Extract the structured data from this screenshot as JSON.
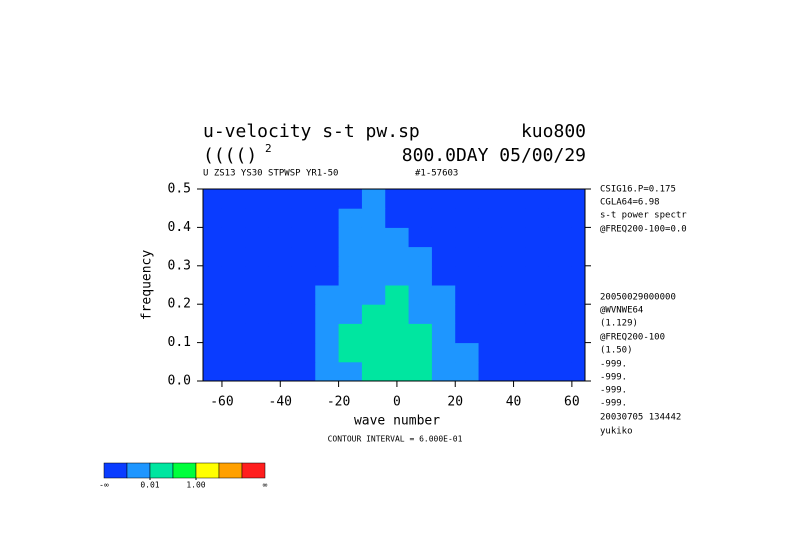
{
  "chart_data": {
    "type": "contourf",
    "title": "u-velocity s-t pw.sp",
    "title_right": "kuo800",
    "subtitle": "(((()",
    "subtitle_superscript": "2",
    "subtitle_right": "800.0DAY 05/00/29",
    "header_note": "U ZS13 YS30 STPWSP YR1-50",
    "header_note_right": "#1-57603",
    "x_label": "wave number",
    "y_label": "frequency",
    "footer_note": "CONTOUR INTERVAL = 6.000E-01",
    "side_notes": [
      "CSIG16.P=0.175",
      "CGLA64=6.98",
      "s-t power spectr",
      "@FREQ200-100=0.0",
      "20050029000000",
      "@WVNWE64",
      "(1.129)",
      "@FREQ200-100",
      "(1.50)",
      "-999.",
      "-999.",
      "-999.",
      "-999.",
      "20030705 134442",
      "yukiko"
    ],
    "xlim": [
      -66.5,
      64.5
    ],
    "ylim": [
      0,
      0.5
    ],
    "xticks": [
      -60,
      -40,
      -20,
      0,
      20,
      40,
      60
    ],
    "yticks": [
      {
        "value": 0,
        "label": "0.0"
      },
      {
        "value": 0.1,
        "label": "0.1"
      },
      {
        "value": 0.2,
        "label": "0.2"
      },
      {
        "value": 0.3,
        "label": "0.3"
      },
      {
        "value": 0.4,
        "label": "0.4"
      },
      {
        "value": 0.5,
        "label": "0.5"
      }
    ],
    "x": [
      -64,
      -56,
      -48,
      -40,
      -32,
      -24,
      -16,
      -8,
      0,
      8,
      16,
      24,
      32,
      40,
      48,
      56,
      64
    ],
    "y": [
      0.025,
      0.075,
      0.125,
      0.175,
      0.225,
      0.275,
      0.325,
      0.375,
      0.425,
      0.475
    ],
    "z": [
      [
        0.0005,
        0.0005,
        0.0005,
        0.0005,
        0.0005,
        0.005,
        0.005,
        0.05,
        0.05,
        0.05,
        0.005,
        0.005,
        0.0005,
        0.0005,
        0.0005,
        0.0005,
        0.0005
      ],
      [
        0.0005,
        0.0005,
        0.0005,
        0.0005,
        0.0005,
        0.005,
        0.05,
        0.05,
        0.05,
        0.05,
        0.005,
        0.005,
        0.0005,
        0.0005,
        0.0005,
        0.0005,
        0.0005
      ],
      [
        0.0005,
        0.0005,
        0.0005,
        0.0005,
        0.0005,
        0.005,
        0.05,
        0.05,
        0.05,
        0.05,
        0.005,
        0.0005,
        0.0005,
        0.0005,
        0.0005,
        0.0005,
        0.0005
      ],
      [
        0.0005,
        0.0005,
        0.0005,
        0.0005,
        0.0005,
        0.005,
        0.005,
        0.05,
        0.05,
        0.005,
        0.005,
        0.0005,
        0.0005,
        0.0005,
        0.0005,
        0.0005,
        0.0005
      ],
      [
        0.0005,
        0.0005,
        0.0005,
        0.0005,
        0.0005,
        0.005,
        0.005,
        0.005,
        0.05,
        0.005,
        0.005,
        0.0005,
        0.0005,
        0.0005,
        0.0005,
        0.0005,
        0.0005
      ],
      [
        0.0005,
        0.0005,
        0.0005,
        0.0005,
        0.0005,
        0.0005,
        0.005,
        0.005,
        0.005,
        0.005,
        0.0005,
        0.0005,
        0.0005,
        0.0005,
        0.0005,
        0.0005,
        0.0005
      ],
      [
        0.0005,
        0.0005,
        0.0005,
        0.0005,
        0.0005,
        0.0005,
        0.005,
        0.005,
        0.005,
        0.005,
        0.0005,
        0.0005,
        0.0005,
        0.0005,
        0.0005,
        0.0005,
        0.0005
      ],
      [
        0.0005,
        0.0005,
        0.0005,
        0.0005,
        0.0005,
        0.0005,
        0.005,
        0.005,
        0.005,
        0.0005,
        0.0005,
        0.0005,
        0.0005,
        0.0005,
        0.0005,
        0.0005,
        0.0005
      ],
      [
        0.0005,
        0.0005,
        0.0005,
        0.0005,
        0.0005,
        0.0005,
        0.005,
        0.005,
        0.0005,
        0.0005,
        0.0005,
        0.0005,
        0.0005,
        0.0005,
        0.0005,
        0.0005,
        0.0005
      ],
      [
        0.0005,
        0.0005,
        0.0005,
        0.0005,
        0.0005,
        0.0005,
        0.0005,
        0.005,
        0.0005,
        0.0005,
        0.0005,
        0.0005,
        0.0005,
        0.0005,
        0.0005,
        0.0005,
        0.0005
      ]
    ],
    "levels": [
      0.001,
      0.01,
      0.1,
      1,
      10,
      100
    ],
    "colors": [
      "#0a3cff",
      "#1e96ff",
      "#00e6a0",
      "#00ff3c",
      "#ffff00",
      "#ffa000",
      "#ff1e1e"
    ],
    "colorbar_ends": [
      "-∞",
      "∞"
    ],
    "colorbar_ticks": [
      {
        "value": 0.01,
        "label": "0.01"
      },
      {
        "value": 1,
        "label": "1.00"
      }
    ]
  }
}
